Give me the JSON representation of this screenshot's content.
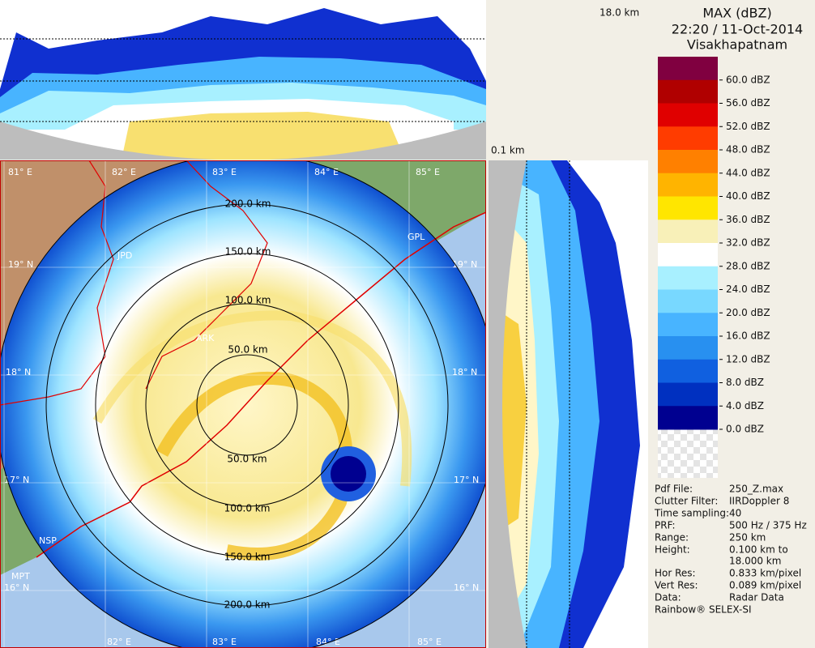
{
  "header": {
    "title": "MAX (dBZ)",
    "time": "22:20 / 11-Oct-2014",
    "site": "Visakhapatnam"
  },
  "section_labels": {
    "top_height": "18.0 km",
    "bottom_height": "0.1 km"
  },
  "legend": {
    "labels": [
      "60.0 dBZ",
      "56.0 dBZ",
      "52.0 dBZ",
      "48.0 dBZ",
      "44.0 dBZ",
      "40.0 dBZ",
      "36.0 dBZ",
      "32.0 dBZ",
      "28.0 dBZ",
      "24.0 dBZ",
      "20.0 dBZ",
      "16.0 dBZ",
      "12.0 dBZ",
      "8.0 dBZ",
      "4.0 dBZ",
      "0.0 dBZ"
    ],
    "colors": [
      "#800040",
      "#b00000",
      "#e00000",
      "#ff3c00",
      "#ff8000",
      "#ffb400",
      "#ffe600",
      "#f8f0b8",
      "#ffffff",
      "#a8f0ff",
      "#78d8ff",
      "#48b4ff",
      "#2890f0",
      "#1060e0",
      "#0030c0",
      "#000090"
    ]
  },
  "info": [
    {
      "key": "Pdf File:",
      "value": "250_Z.max"
    },
    {
      "key": "Clutter Filter:",
      "value": "IIRDoppler 8"
    },
    {
      "key": "Time sampling:",
      "value": "40"
    },
    {
      "key": "PRF:",
      "value": "500 Hz / 375 Hz"
    },
    {
      "key": "Range:",
      "value": "250 km"
    },
    {
      "key": "Height:",
      "value": [
        "0.100 km to",
        "18.000 km"
      ]
    },
    {
      "key": "Hor Res:",
      "value": "0.833 km/pixel"
    },
    {
      "key": "Vert Res:",
      "value": "0.089 km/pixel"
    },
    {
      "key": "Data:",
      "value": "Radar Data"
    }
  ],
  "footer": "Rainbow® SELEX-SI",
  "map": {
    "longitudes_top": [
      "81° E",
      "82° E",
      "83° E",
      "84° E",
      "85° E"
    ],
    "longitudes_bottom": [
      "82° E",
      "83° E",
      "84° E",
      "85° E"
    ],
    "latitudes_left": [
      "19° N",
      "18° N",
      "17° N",
      "16° N"
    ],
    "latitudes_right": [
      "19° N",
      "18° N",
      "17° N",
      "16° N"
    ],
    "range_labels_north": [
      "200.0 km",
      "150.0 km",
      "100.0 km",
      "50.0 km"
    ],
    "range_labels_south": [
      "50.0 km",
      "100.0 km",
      "150.0 km",
      "200.0 km"
    ],
    "places": [
      "JPD",
      "ARK",
      "GPL",
      "NSP",
      "MPT"
    ]
  }
}
